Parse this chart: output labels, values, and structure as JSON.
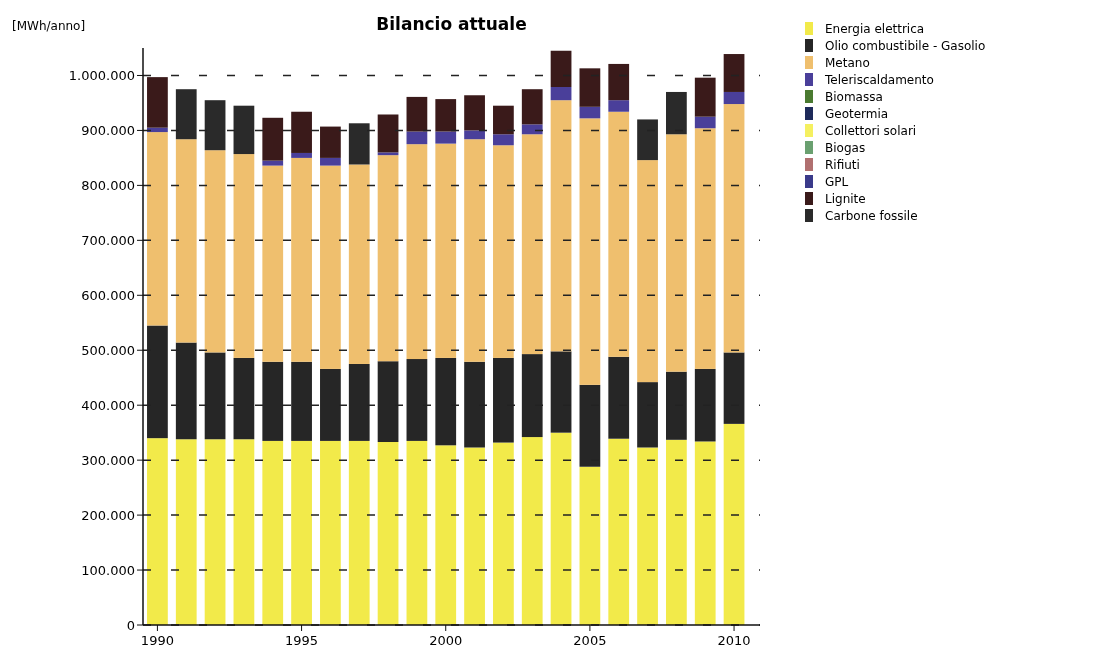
{
  "chart_data": {
    "type": "bar",
    "stacked": true,
    "title": "Bilancio attuale",
    "ylabel": "[MWh/anno]",
    "x": [
      1990,
      1991,
      1992,
      1993,
      1994,
      1995,
      1996,
      1997,
      1998,
      1999,
      2000,
      2001,
      2002,
      2003,
      2004,
      2005,
      2006,
      2007,
      2008,
      2009,
      2010
    ],
    "xlim": [
      1989.5,
      2010.9
    ],
    "xticks": [
      1990,
      1995,
      2000,
      2005,
      2010
    ],
    "ylim": [
      0,
      1050000
    ],
    "yticks": [
      {
        "value": 0,
        "label": "0"
      },
      {
        "value": 100000,
        "label": "100.000"
      },
      {
        "value": 200000,
        "label": "200.000"
      },
      {
        "value": 300000,
        "label": "300.000"
      },
      {
        "value": 400000,
        "label": "400.000"
      },
      {
        "value": 500000,
        "label": "500.000"
      },
      {
        "value": 600000,
        "label": "600.000"
      },
      {
        "value": 700000,
        "label": "700.000"
      },
      {
        "value": 800000,
        "label": "800.000"
      },
      {
        "value": 900000,
        "label": "900.000"
      },
      {
        "value": 1000000,
        "label": "1.000.000"
      }
    ],
    "grid": "y",
    "legend": "right",
    "series": [
      {
        "name": "Energia elettrica",
        "color": "#f2ea4a",
        "values": [
          340000,
          338000,
          338000,
          338000,
          335000,
          335000,
          335000,
          335000,
          333000,
          335000,
          327000,
          323000,
          332000,
          342000,
          350000,
          288000,
          339000,
          323000,
          337000,
          334000,
          366000
        ]
      },
      {
        "name": "Olio combustibile - Gasolio",
        "color": "#262626",
        "values": [
          205000,
          176000,
          158000,
          148000,
          144000,
          144000,
          131000,
          140000,
          147000,
          149000,
          159000,
          156000,
          154000,
          151000,
          148000,
          149000,
          149000,
          119000,
          124000,
          132000,
          130000
        ]
      },
      {
        "name": "Metano",
        "color": "#efbf6e",
        "values": [
          352000,
          370000,
          368000,
          371000,
          357000,
          371000,
          370000,
          363000,
          375000,
          391000,
          390000,
          405000,
          387000,
          400000,
          457000,
          485000,
          446000,
          404000,
          432000,
          438000,
          452000
        ]
      },
      {
        "name": "Teleriscaldamento",
        "color": "#4a3f9a",
        "values": [
          8000,
          0,
          0,
          0,
          9000,
          9000,
          14000,
          0,
          5000,
          23000,
          22000,
          16000,
          20000,
          18000,
          24000,
          21000,
          21000,
          0,
          0,
          21000,
          22000
        ]
      },
      {
        "name": "Biomassa",
        "color": "#4a7a30",
        "values": [
          0,
          0,
          0,
          0,
          0,
          0,
          0,
          0,
          0,
          0,
          0,
          0,
          0,
          0,
          0,
          0,
          0,
          0,
          0,
          0,
          0
        ]
      },
      {
        "name": "Geotermia",
        "color": "#1e2a5a",
        "values": [
          0,
          0,
          0,
          0,
          0,
          0,
          0,
          0,
          0,
          0,
          0,
          0,
          0,
          0,
          0,
          0,
          0,
          0,
          0,
          0,
          0
        ]
      },
      {
        "name": "Collettori solari",
        "color": "#f5f060",
        "values": [
          0,
          0,
          0,
          0,
          0,
          0,
          0,
          0,
          0,
          0,
          0,
          0,
          0,
          0,
          0,
          0,
          0,
          0,
          0,
          0,
          0
        ]
      },
      {
        "name": "Biogas",
        "color": "#6aa070",
        "values": [
          0,
          0,
          0,
          0,
          0,
          0,
          0,
          0,
          0,
          0,
          0,
          0,
          0,
          0,
          0,
          0,
          0,
          0,
          0,
          0,
          0
        ]
      },
      {
        "name": "Rifiuti",
        "color": "#b07070",
        "values": [
          0,
          0,
          0,
          0,
          0,
          0,
          0,
          0,
          0,
          0,
          0,
          0,
          0,
          0,
          0,
          0,
          0,
          0,
          0,
          0,
          0
        ]
      },
      {
        "name": "GPL",
        "color": "#3a3a8a",
        "values": [
          0,
          0,
          0,
          0,
          0,
          0,
          0,
          0,
          0,
          0,
          0,
          0,
          0,
          0,
          0,
          0,
          0,
          0,
          0,
          0,
          0
        ]
      },
      {
        "name": "Lignite",
        "color": "#3a1a1a",
        "values": [
          92000,
          0,
          0,
          0,
          78000,
          75000,
          57000,
          0,
          69000,
          63000,
          59000,
          64000,
          52000,
          64000,
          66000,
          70000,
          66000,
          0,
          0,
          71000,
          69000
        ]
      },
      {
        "name": "Carbone fossile",
        "color": "#2a2a2a",
        "values": [
          0,
          91000,
          91000,
          88000,
          0,
          0,
          0,
          75000,
          0,
          0,
          0,
          0,
          0,
          0,
          0,
          0,
          0,
          74000,
          77000,
          0,
          0
        ]
      }
    ]
  }
}
